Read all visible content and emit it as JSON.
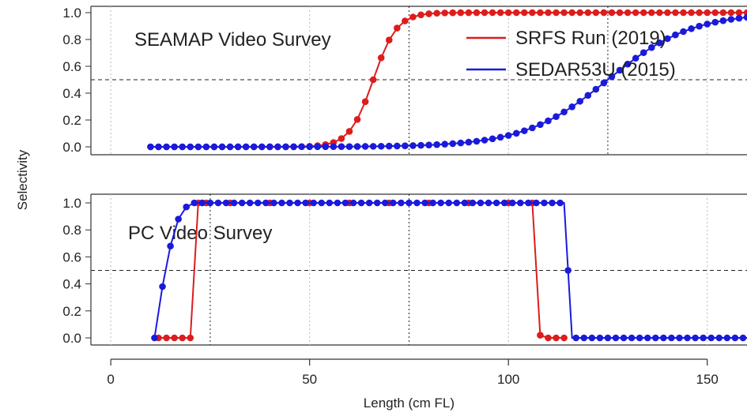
{
  "chart_data": {
    "type": "line",
    "xlabel": "Length (cm FL)",
    "ylabel": "Selectivity",
    "xlim": [
      -5,
      160
    ],
    "xticks": [
      0,
      50,
      100,
      150
    ],
    "yticks": [
      0.0,
      0.2,
      0.4,
      0.6,
      0.8,
      1.0
    ],
    "ytick_labels": [
      "0.0",
      "0.2",
      "0.4",
      "0.6",
      "0.8",
      "1.0"
    ],
    "colors": {
      "red": "#dd1c1c",
      "blue": "#1a1adb"
    },
    "legend": {
      "placement": "top-right",
      "entries": [
        {
          "label": "SRFS Run (2019)",
          "color": "#dd1c1c"
        },
        {
          "label": "SEDAR53U (2015)",
          "color": "#1a1adb"
        }
      ]
    },
    "panels": [
      {
        "title": "SEAMAP Video Survey",
        "ylim": [
          0,
          1
        ],
        "reference_lines": {
          "h": [
            0.5
          ],
          "v": [
            75,
            125
          ]
        },
        "series": [
          {
            "name": "SRFS Run (2019)",
            "color": "#dd1c1c",
            "model": "logistic",
            "a50": 66,
            "slope": 0.34,
            "x_range": [
              10,
              160
            ],
            "x_step": 2
          },
          {
            "name": "SEDAR53U (2015)",
            "color": "#1a1adb",
            "model": "logistic",
            "a50": 125,
            "slope": 0.095,
            "x_range": [
              10,
              160
            ],
            "x_step": 2
          }
        ]
      },
      {
        "title": "PC Video Survey",
        "ylim": [
          0,
          1
        ],
        "reference_lines": {
          "h": [
            0.5
          ],
          "v": [
            25,
            75
          ]
        },
        "series": [
          {
            "name": "SRFS Run (2019)",
            "color": "#dd1c1c",
            "points": [
              [
                12,
                0
              ],
              [
                14,
                0
              ],
              [
                16,
                0
              ],
              [
                18,
                0
              ],
              [
                20,
                0
              ],
              [
                22,
                1
              ],
              [
                24,
                1
              ],
              [
                30,
                1
              ],
              [
                40,
                1
              ],
              [
                50,
                1
              ],
              [
                60,
                1
              ],
              [
                70,
                1
              ],
              [
                80,
                1
              ],
              [
                90,
                1
              ],
              [
                100,
                1
              ],
              [
                106,
                1
              ],
              [
                108,
                0.02
              ],
              [
                110,
                0
              ],
              [
                112,
                0
              ],
              [
                114,
                0
              ]
            ]
          },
          {
            "name": "SEDAR53U (2015)",
            "color": "#1a1adb",
            "points": [
              [
                11,
                0
              ],
              [
                13,
                0.38
              ],
              [
                15,
                0.68
              ],
              [
                17,
                0.88
              ],
              [
                19,
                0.97
              ],
              [
                21,
                1
              ],
              [
                30,
                1
              ],
              [
                40,
                1
              ],
              [
                50,
                1
              ],
              [
                60,
                1
              ],
              [
                70,
                1
              ],
              [
                80,
                1
              ],
              [
                90,
                1
              ],
              [
                100,
                1
              ],
              [
                110,
                1
              ],
              [
                114,
                1
              ],
              [
                116,
                0
              ],
              [
                120,
                0
              ],
              [
                130,
                0
              ],
              [
                140,
                0
              ],
              [
                150,
                0
              ],
              [
                160,
                0
              ]
            ],
            "marker_x_step": 2,
            "marker_x_range": [
              11,
              160
            ]
          }
        ]
      }
    ]
  }
}
